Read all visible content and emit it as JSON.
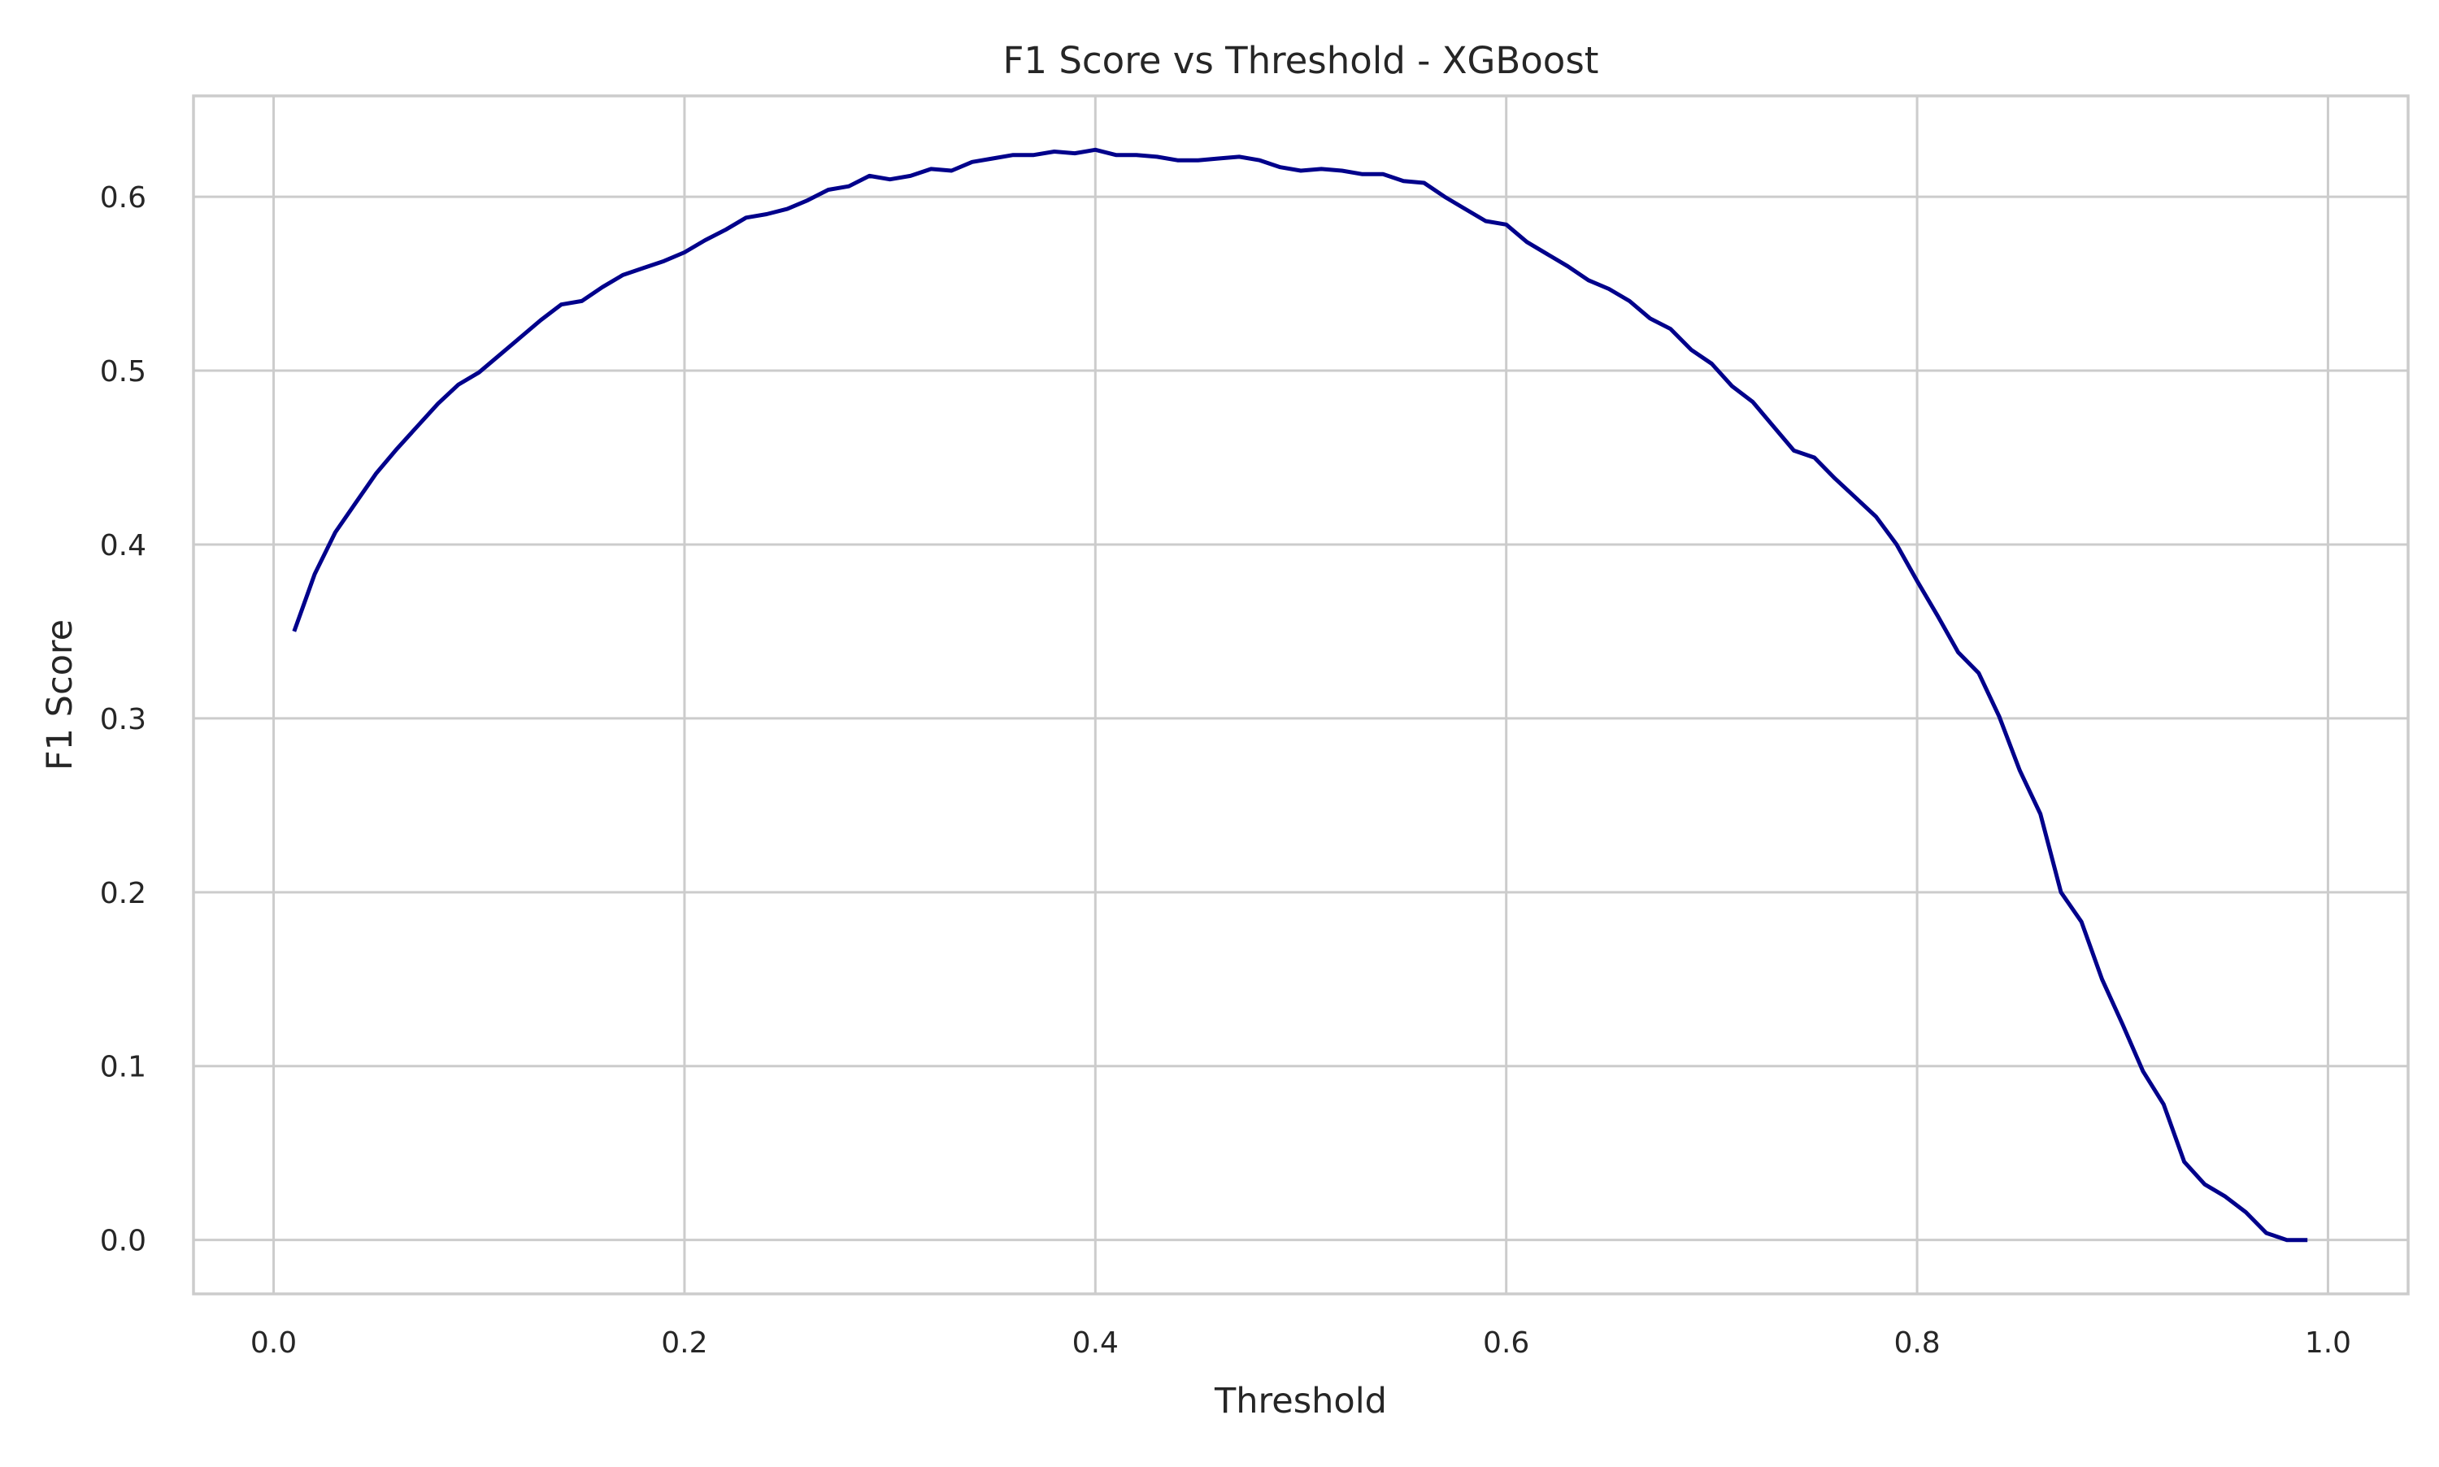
{
  "chart_data": {
    "type": "line",
    "title": "F1 Score vs Threshold - XGBoost",
    "xlabel": "Threshold",
    "ylabel": "F1 Score",
    "xlim": [
      -0.039,
      1.039
    ],
    "ylim": [
      -0.031,
      0.658
    ],
    "xticks": [
      0.0,
      0.2,
      0.4,
      0.6,
      0.8,
      1.0
    ],
    "xtick_labels": [
      "0.0",
      "0.2",
      "0.4",
      "0.6",
      "0.8",
      "1.0"
    ],
    "yticks": [
      0.0,
      0.1,
      0.2,
      0.3,
      0.4,
      0.5,
      0.6
    ],
    "ytick_labels": [
      "0.0",
      "0.1",
      "0.2",
      "0.3",
      "0.4",
      "0.5",
      "0.6"
    ],
    "grid": true,
    "line_color": "#00008b",
    "series": [
      {
        "x": [
          0.01,
          0.02,
          0.03,
          0.04,
          0.05,
          0.06,
          0.07,
          0.08,
          0.09,
          0.1,
          0.11,
          0.12,
          0.13,
          0.14,
          0.15,
          0.16,
          0.17,
          0.18,
          0.19,
          0.2,
          0.21,
          0.22,
          0.23,
          0.24,
          0.25,
          0.26,
          0.27,
          0.28,
          0.29,
          0.3,
          0.31,
          0.32,
          0.33,
          0.34,
          0.35,
          0.36,
          0.37,
          0.38,
          0.39,
          0.4,
          0.41,
          0.42,
          0.43,
          0.44,
          0.45,
          0.46,
          0.47,
          0.48,
          0.49,
          0.5,
          0.51,
          0.52,
          0.53,
          0.54,
          0.55,
          0.56,
          0.57,
          0.58,
          0.59,
          0.6,
          0.61,
          0.62,
          0.63,
          0.64,
          0.65,
          0.66,
          0.67,
          0.68,
          0.69,
          0.7,
          0.71,
          0.72,
          0.73,
          0.74,
          0.75,
          0.76,
          0.77,
          0.78,
          0.79,
          0.8,
          0.81,
          0.82,
          0.83,
          0.84,
          0.85,
          0.86,
          0.87,
          0.88,
          0.89,
          0.9,
          0.91,
          0.92,
          0.93,
          0.94,
          0.95,
          0.96,
          0.97,
          0.98,
          0.99
        ],
        "values": [
          0.35,
          0.383,
          0.407,
          0.424,
          0.441,
          0.455,
          0.468,
          0.481,
          0.492,
          0.499,
          0.509,
          0.519,
          0.529,
          0.538,
          0.54,
          0.548,
          0.555,
          0.559,
          0.563,
          0.568,
          0.575,
          0.581,
          0.588,
          0.59,
          0.593,
          0.598,
          0.604,
          0.606,
          0.612,
          0.61,
          0.612,
          0.616,
          0.615,
          0.62,
          0.622,
          0.624,
          0.624,
          0.626,
          0.625,
          0.627,
          0.624,
          0.624,
          0.623,
          0.621,
          0.621,
          0.622,
          0.623,
          0.621,
          0.617,
          0.615,
          0.616,
          0.615,
          0.613,
          0.613,
          0.609,
          0.608,
          0.6,
          0.593,
          0.586,
          0.584,
          0.574,
          0.567,
          0.56,
          0.552,
          0.547,
          0.54,
          0.53,
          0.524,
          0.512,
          0.504,
          0.491,
          0.482,
          0.468,
          0.454,
          0.45,
          0.438,
          0.427,
          0.416,
          0.4,
          0.379,
          0.359,
          0.338,
          0.326,
          0.301,
          0.27,
          0.245,
          0.2,
          0.183,
          0.15,
          0.124,
          0.097,
          0.078,
          0.045,
          0.032,
          0.025,
          0.016,
          0.004,
          0.0,
          0.0
        ]
      }
    ]
  }
}
